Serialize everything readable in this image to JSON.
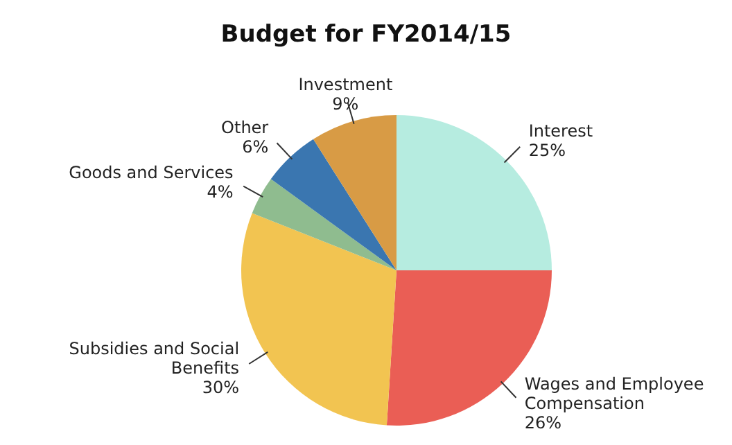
{
  "chart_data": {
    "type": "pie",
    "title": "Budget for FY2014/15",
    "categories": [
      "Interest",
      "Wages and Employee Compensation",
      "Subsidies and Social Benefits",
      "Goods and Services",
      "Other",
      "Investment"
    ],
    "values": [
      25,
      26,
      30,
      4,
      6,
      9
    ],
    "value_labels": [
      "25%",
      "26%",
      "30%",
      "4%",
      "6%",
      "9%"
    ],
    "colors": [
      "#b6ece0",
      "#ea5e55",
      "#f2c451",
      "#8fbc8f",
      "#3a76b0",
      "#d89b45"
    ],
    "legend": false
  }
}
